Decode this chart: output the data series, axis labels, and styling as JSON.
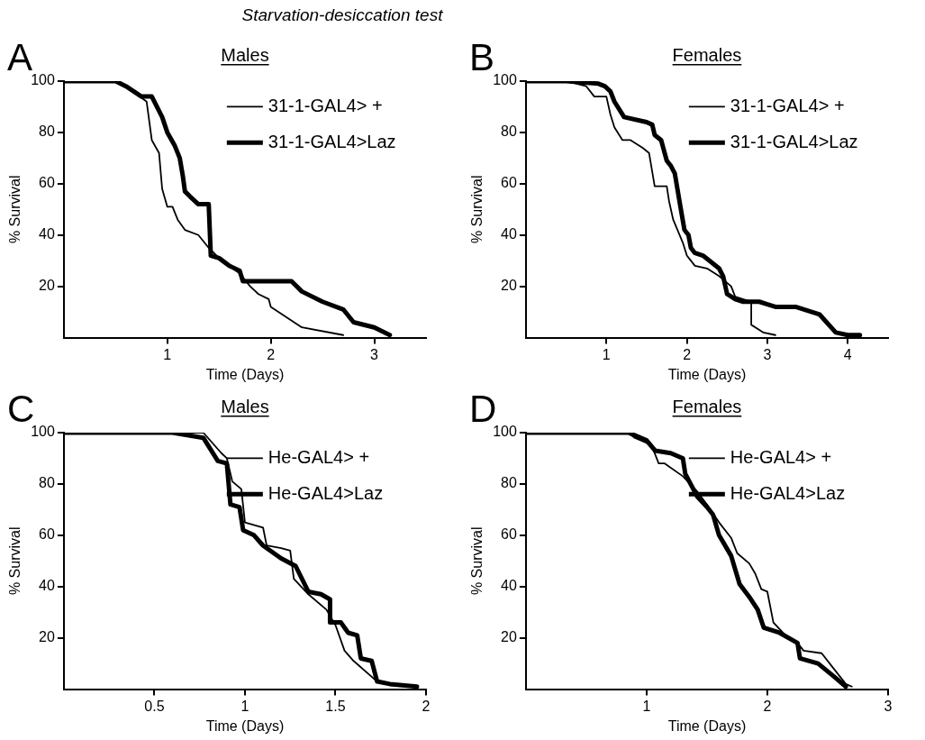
{
  "chart_data": [
    {
      "type": "line",
      "title": "Males",
      "xlabel": "Time (Days)",
      "ylabel": "% Survival",
      "xlim": [
        0,
        3.5
      ],
      "xticks": [
        1,
        2,
        3
      ],
      "ylim": [
        0,
        100
      ],
      "yticks": [
        20,
        40,
        60,
        80,
        100
      ],
      "legend": "top right",
      "annotations": [
        "Starvation-desiccation test",
        "A"
      ],
      "series": [
        {
          "name": "31-1-GAL4> +",
          "color": "#000000",
          "x": [
            0,
            0.5,
            0.6,
            0.8,
            0.85,
            0.92,
            0.95,
            1.0,
            1.05,
            1.1,
            1.17,
            1.3,
            1.4,
            1.5,
            1.6,
            1.7,
            1.8,
            1.88,
            1.98,
            2.0,
            2.3,
            2.7
          ],
          "values": [
            100,
            100,
            98,
            92,
            77,
            72,
            58,
            51,
            51,
            46,
            42,
            40,
            35,
            31,
            28,
            25,
            20,
            17,
            15,
            12,
            4,
            1
          ]
        },
        {
          "name": "31-1-GAL4>Laz",
          "color": "#000000",
          "x": [
            0,
            0.5,
            0.6,
            0.75,
            0.85,
            0.95,
            1.0,
            1.07,
            1.12,
            1.15,
            1.17,
            1.22,
            1.3,
            1.4,
            1.42,
            1.5,
            1.6,
            1.7,
            1.73,
            2.2,
            2.3,
            2.5,
            2.7,
            2.8,
            3.0,
            3.15
          ],
          "values": [
            100,
            100,
            98,
            94,
            94,
            86,
            80,
            75,
            70,
            63,
            57,
            55,
            52,
            52,
            32,
            31,
            28,
            26,
            22,
            22,
            18,
            14,
            11,
            6,
            4,
            1
          ]
        }
      ]
    },
    {
      "type": "line",
      "title": "Females",
      "xlabel": "Time (Days)",
      "ylabel": "% Survival",
      "xlim": [
        0,
        4.5
      ],
      "xticks": [
        1,
        2,
        3,
        4
      ],
      "ylim": [
        0,
        100
      ],
      "yticks": [
        20,
        40,
        60,
        80,
        100
      ],
      "legend": "top right",
      "annotations": [
        "B"
      ],
      "series": [
        {
          "name": "31-1-GAL4> +",
          "color": "#000000",
          "x": [
            0,
            0.5,
            0.75,
            0.85,
            1.0,
            1.05,
            1.1,
            1.2,
            1.3,
            1.45,
            1.53,
            1.6,
            1.75,
            1.78,
            1.83,
            1.95,
            2.0,
            2.1,
            2.25,
            2.4,
            2.55,
            2.6,
            2.8,
            2.8,
            2.9,
            2.95,
            3.1
          ],
          "values": [
            100,
            100,
            98,
            94,
            94,
            87,
            82,
            77,
            77,
            74,
            72,
            59,
            59,
            53,
            46,
            37,
            32,
            28,
            27,
            24,
            20,
            16,
            14,
            5,
            3,
            2,
            1
          ]
        },
        {
          "name": "31-1-GAL4>Laz",
          "color": "#000000",
          "x": [
            0,
            0.5,
            0.9,
            0.98,
            1.05,
            1.1,
            1.22,
            1.5,
            1.57,
            1.6,
            1.68,
            1.75,
            1.8,
            1.85,
            1.92,
            1.97,
            2.02,
            2.05,
            2.1,
            2.2,
            2.4,
            2.45,
            2.5,
            2.6,
            2.7,
            2.9,
            3.0,
            3.1,
            3.35,
            3.65,
            3.85,
            4.0,
            4.15
          ],
          "values": [
            100,
            100,
            99,
            98,
            96,
            92,
            86,
            84,
            83,
            79,
            77,
            69,
            67,
            64,
            51,
            42,
            40,
            35,
            33,
            32,
            27,
            24,
            17,
            15,
            14,
            14,
            13,
            12,
            12,
            9,
            2,
            1,
            1
          ]
        }
      ]
    },
    {
      "type": "line",
      "title": "Males",
      "xlabel": "Time (Days)",
      "ylabel": "% Survival",
      "xlim": [
        0,
        2
      ],
      "xticks": [
        0.5,
        1,
        1.5,
        2
      ],
      "ylim": [
        0,
        100
      ],
      "yticks": [
        20,
        40,
        60,
        80,
        100
      ],
      "legend": "top right",
      "annotations": [
        "C"
      ],
      "series": [
        {
          "name": "He-GAL4> +",
          "color": "#000000",
          "x": [
            0,
            0.6,
            0.77,
            0.87,
            0.9,
            0.93,
            0.98,
            1.0,
            1.1,
            1.12,
            1.2,
            1.25,
            1.27,
            1.35,
            1.45,
            1.5,
            1.55,
            1.6,
            1.73,
            1.8,
            1.95
          ],
          "values": [
            100,
            100,
            100,
            92,
            90,
            81,
            78,
            65,
            63,
            56,
            55,
            54,
            43,
            37,
            31,
            25,
            15,
            11,
            3,
            2,
            1
          ]
        },
        {
          "name": "He-GAL4>Laz",
          "color": "#000000",
          "x": [
            0,
            0.6,
            0.77,
            0.85,
            0.9,
            0.92,
            0.97,
            0.99,
            1.05,
            1.1,
            1.2,
            1.28,
            1.35,
            1.42,
            1.47,
            1.47,
            1.53,
            1.57,
            1.62,
            1.64,
            1.7,
            1.73,
            1.8,
            1.95
          ],
          "values": [
            100,
            100,
            98,
            89,
            88,
            72,
            71,
            62,
            60,
            56,
            51,
            48,
            38,
            37,
            35,
            26,
            26,
            22,
            21,
            12,
            11,
            3,
            2,
            1
          ]
        }
      ]
    },
    {
      "type": "line",
      "title": "Females",
      "xlabel": "Time (Days)",
      "ylabel": "% Survival",
      "xlim": [
        0,
        3
      ],
      "xticks": [
        1,
        2,
        3
      ],
      "ylim": [
        0,
        100
      ],
      "yticks": [
        20,
        40,
        60,
        80,
        100
      ],
      "legend": "top right",
      "annotations": [
        "D"
      ],
      "series": [
        {
          "name": "He-GAL4> +",
          "color": "#000000",
          "x": [
            0,
            0.85,
            0.9,
            1.0,
            1.05,
            1.1,
            1.15,
            1.3,
            1.42,
            1.5,
            1.6,
            1.7,
            1.75,
            1.85,
            1.9,
            1.95,
            2.0,
            2.05,
            2.15,
            2.25,
            2.3,
            2.45,
            2.55,
            2.65,
            2.7
          ],
          "values": [
            100,
            100,
            98,
            96,
            94,
            88,
            88,
            83,
            77,
            72,
            65,
            59,
            53,
            49,
            45,
            39,
            38,
            26,
            21,
            18,
            15,
            14,
            8,
            2,
            1
          ]
        },
        {
          "name": "He-GAL4>Laz",
          "color": "#000000",
          "x": [
            0,
            0.85,
            0.9,
            1.0,
            1.07,
            1.2,
            1.3,
            1.32,
            1.42,
            1.5,
            1.55,
            1.6,
            1.7,
            1.77,
            1.85,
            1.92,
            1.97,
            2.1,
            2.25,
            2.27,
            2.42,
            2.55,
            2.65
          ],
          "values": [
            100,
            100,
            99,
            97,
            93,
            92,
            90,
            84,
            75,
            71,
            68,
            60,
            52,
            41,
            36,
            31,
            24,
            22,
            18,
            12,
            10,
            5,
            1
          ]
        }
      ]
    }
  ]
}
